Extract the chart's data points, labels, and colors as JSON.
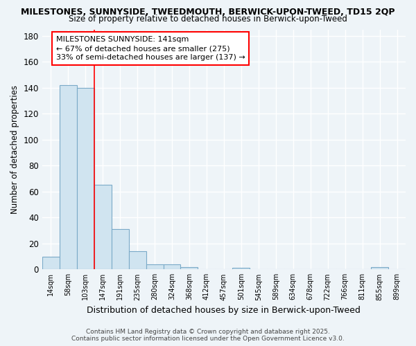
{
  "title1": "MILESTONES, SUNNYSIDE, TWEEDMOUTH, BERWICK-UPON-TWEED, TD15 2QP",
  "title2": "Size of property relative to detached houses in Berwick-upon-Tweed",
  "xlabel": "Distribution of detached houses by size in Berwick-upon-Tweed",
  "ylabel": "Number of detached properties",
  "categories": [
    "14sqm",
    "58sqm",
    "103sqm",
    "147sqm",
    "191sqm",
    "235sqm",
    "280sqm",
    "324sqm",
    "368sqm",
    "412sqm",
    "457sqm",
    "501sqm",
    "545sqm",
    "589sqm",
    "634sqm",
    "678sqm",
    "722sqm",
    "766sqm",
    "811sqm",
    "855sqm",
    "899sqm"
  ],
  "values": [
    10,
    142,
    140,
    65,
    31,
    14,
    4,
    4,
    2,
    0,
    0,
    1,
    0,
    0,
    0,
    0,
    0,
    0,
    0,
    2,
    0
  ],
  "bar_color": "#d0e4f0",
  "bar_edge_color": "#7aaac8",
  "bg_color": "#eef4f8",
  "grid_color": "#ffffff",
  "red_line_index": 2.5,
  "annotation_line1": "MILESTONES SUNNYSIDE: 141sqm",
  "annotation_line2": "← 67% of detached houses are smaller (275)",
  "annotation_line3": "33% of semi-detached houses are larger (137) →",
  "ylim": [
    0,
    185
  ],
  "yticks": [
    0,
    20,
    40,
    60,
    80,
    100,
    120,
    140,
    160,
    180
  ],
  "footer": "Contains HM Land Registry data © Crown copyright and database right 2025.\nContains public sector information licensed under the Open Government Licence v3.0."
}
